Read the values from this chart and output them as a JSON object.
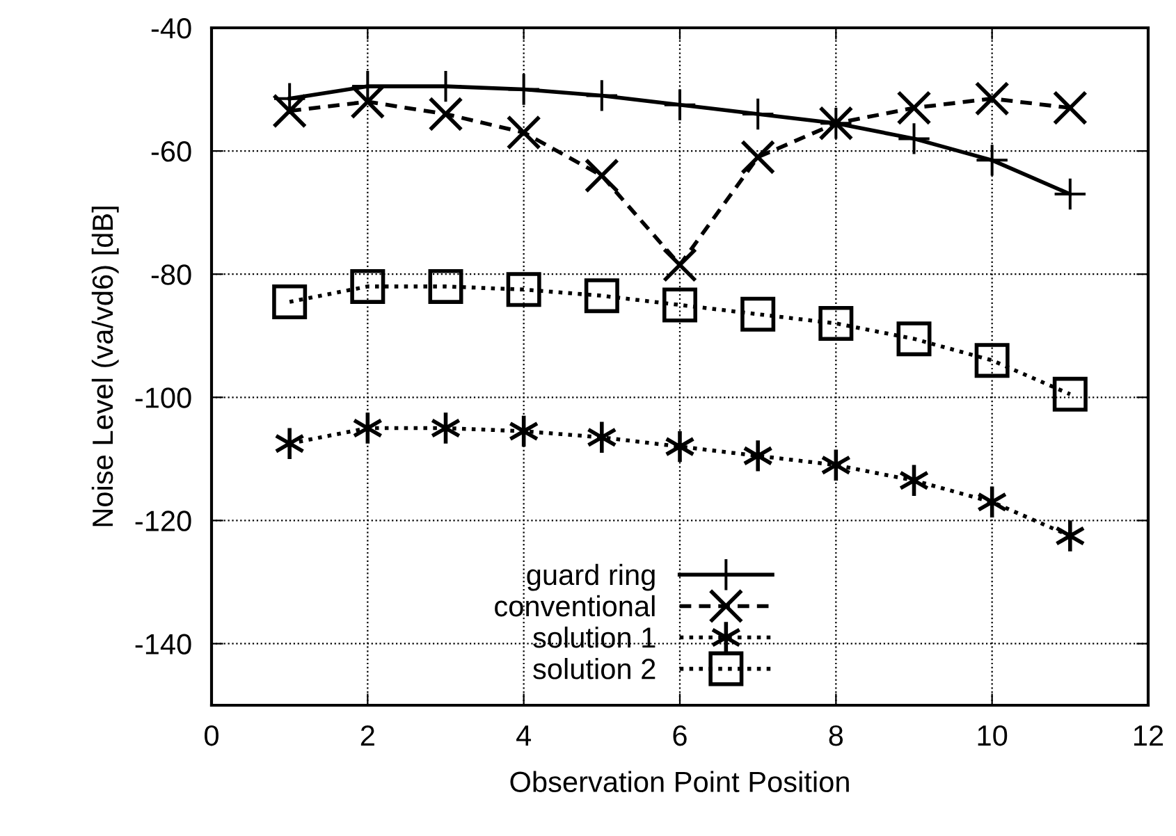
{
  "chart_data": {
    "type": "line",
    "xlabel": "Observation Point Position",
    "ylabel": "Noise Level (va/vd6) [dB]",
    "x": [
      1,
      2,
      3,
      4,
      5,
      6,
      7,
      8,
      9,
      10,
      11
    ],
    "xlim": [
      0,
      12
    ],
    "xticks": [
      0,
      2,
      4,
      6,
      8,
      10,
      12
    ],
    "ylim": [
      -150,
      -40
    ],
    "yticks": [
      -140,
      -120,
      -100,
      -80,
      -60,
      -40
    ],
    "grid": true,
    "legend": "bottom",
    "series": [
      {
        "name": "guard ring",
        "color": "#000000",
        "marker": "cross",
        "line_style": "solid",
        "values": [
          -51.5,
          -49.5,
          -49.5,
          -50,
          -51,
          -52.5,
          -54,
          -55.5,
          -58,
          -61.5,
          -67
        ]
      },
      {
        "name": "conventional",
        "color": "#000000",
        "marker": "cross",
        "line_style": "dashed",
        "values": [
          -53.5,
          -52,
          -54,
          -57,
          -64,
          -78.5,
          -61,
          -55.5,
          -53,
          -51.5,
          -53
        ]
      },
      {
        "name": "solution 1",
        "color": "#000000",
        "marker": "cross",
        "line_style": "dotted",
        "values": [
          -107.5,
          -105,
          -105,
          -105.5,
          -106.5,
          -108,
          -109.5,
          -111,
          -113.5,
          -117,
          -122.5
        ]
      },
      {
        "name": "solution 2",
        "color": "#000000",
        "marker": "square",
        "line_style": "dotted",
        "values": [
          -84.5,
          -82,
          -82,
          -82.5,
          -83.5,
          -85,
          -86.5,
          -88,
          -90.5,
          -94,
          -99.5
        ]
      }
    ]
  }
}
